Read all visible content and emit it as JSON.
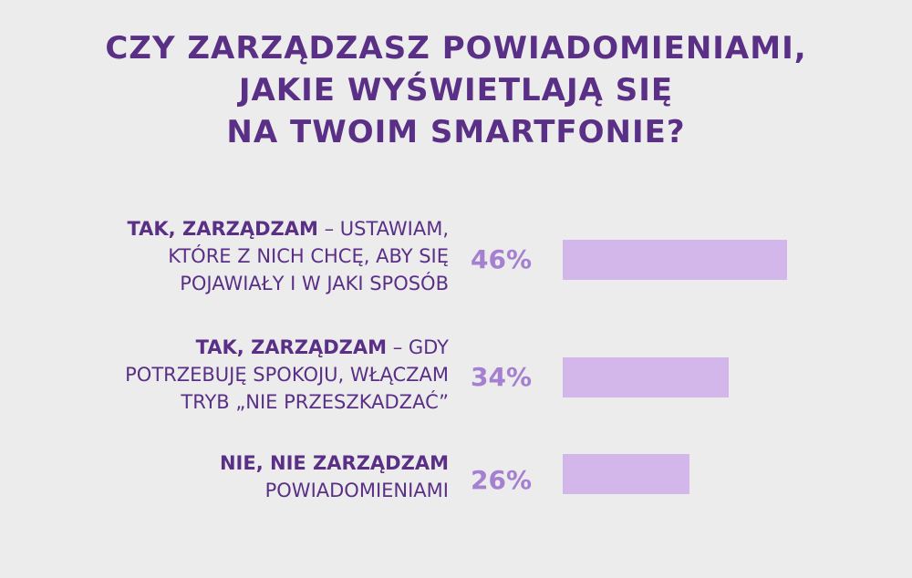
{
  "chart_data": {
    "type": "bar",
    "orientation": "horizontal",
    "title_lines": [
      "CZY ZARZĄDZASZ POWIADOMIENIAMI,",
      "JAKIE WYŚWIETLAJĄ SIĘ",
      "NA TWOIM SMARTFONIE?"
    ],
    "categories": [
      {
        "bold": "TAK, ZARZĄDZAM",
        "lines": [
          " – USTAWIAM,",
          "KTÓRE Z NICH CHCĘ, ABY SIĘ",
          "POJAWIAŁY I W JAKI SPOSÓB"
        ]
      },
      {
        "bold": "TAK, ZARZĄDZAM",
        "lines": [
          " – GDY",
          "POTRZEBUJĘ SPOKOJU, WŁĄCZAM",
          "TRYB „NIE PRZESZKADZAĆ”"
        ]
      },
      {
        "bold": "NIE, NIE ZARZĄDZAM",
        "lines": [
          "",
          "POWIADOMIENIAMI"
        ]
      }
    ],
    "values": [
      46,
      34,
      26
    ],
    "value_labels": [
      "46%",
      "34%",
      "26%"
    ],
    "unit": "%",
    "grid": false,
    "colors": {
      "title": "#5a2f86",
      "label": "#5a2f86",
      "value_label": "#a57fd0",
      "bar": "#d3b7eb",
      "background": "#ececec"
    }
  }
}
